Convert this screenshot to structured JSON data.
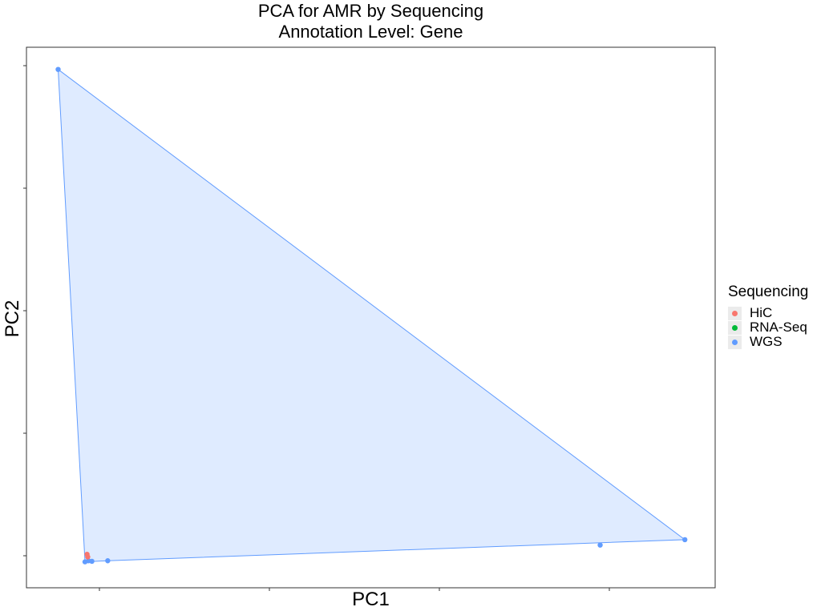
{
  "chart_data": {
    "type": "scatter",
    "title": "PCA for AMR by Sequencing",
    "subtitle": "Annotation Level: Gene",
    "xlabel": "PC1",
    "ylabel": "PC2",
    "xlim": [
      0,
      100
    ],
    "ylim": [
      0,
      100
    ],
    "grid": false,
    "legend_position": "right",
    "legend_title": "Sequencing",
    "series": [
      {
        "name": "HiC",
        "color": "#F8766D",
        "points": [
          [
            8.8,
            6.2
          ],
          [
            8.9,
            5.7
          ]
        ]
      },
      {
        "name": "RNA-Seq",
        "color": "#00BA38",
        "points": []
      },
      {
        "name": "WGS",
        "color": "#619CFF",
        "points": [
          [
            4.6,
            95.9
          ],
          [
            8.5,
            4.8
          ],
          [
            9.0,
            5.0
          ],
          [
            9.5,
            4.9
          ],
          [
            11.8,
            5.0
          ],
          [
            83.3,
            7.9
          ],
          [
            95.6,
            8.9
          ]
        ]
      }
    ],
    "hulls": [
      {
        "series": "WGS",
        "points": [
          [
            4.6,
            95.9
          ],
          [
            95.6,
            8.9
          ],
          [
            11.8,
            5.0
          ],
          [
            8.5,
            4.8
          ]
        ]
      }
    ]
  }
}
